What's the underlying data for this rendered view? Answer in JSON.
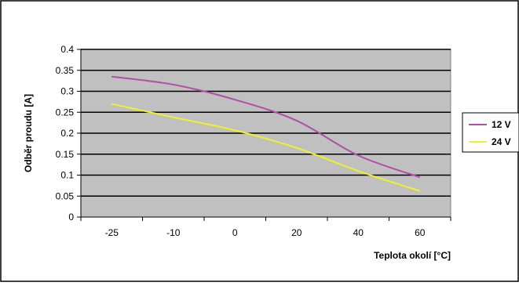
{
  "chart_data": {
    "type": "line",
    "xlabel": "Teplota okolí [°C]",
    "ylabel": "Odběr proudu [A]",
    "x_ticks": [
      "-25",
      "-10",
      "0",
      "20",
      "40",
      "60"
    ],
    "y_ticks": [
      "0",
      "0.05",
      "0.1",
      "0.15",
      "0.2",
      "0.25",
      "0.3",
      "0.35",
      "0.4"
    ],
    "ylim": [
      0,
      0.4
    ],
    "grid": true,
    "plot_background": "#c0c0c0",
    "legend_position": "right",
    "series": [
      {
        "name": "12 V",
        "color": "#b04fa8",
        "values": [
          0.335,
          0.316,
          0.28,
          0.23,
          0.147,
          0.095
        ]
      },
      {
        "name": "24 V",
        "color": "#f2ef2c",
        "values": [
          0.27,
          0.238,
          0.207,
          0.165,
          0.11,
          0.062
        ]
      }
    ]
  }
}
